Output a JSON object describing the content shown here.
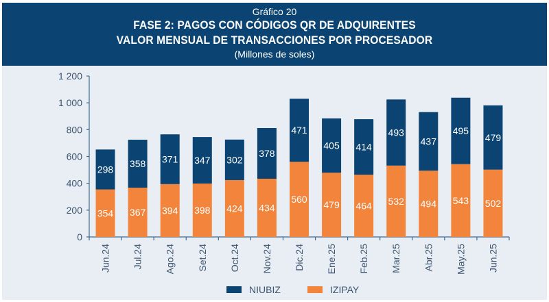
{
  "header": {
    "supertitle": "Gráfico 20",
    "title_line1": "FASE 2: PAGOS CON CÓDIGOS QR DE ADQUIRENTES",
    "title_line2": "VALOR MENSUAL DE TRANSACCIONES POR PROCESADOR",
    "subtitle": "(Millones de soles)"
  },
  "colors": {
    "header_bg": "#0b4472",
    "panel_bg": "#e9eef5",
    "niubiz": "#0b4472",
    "izipay": "#f3843c",
    "axis": "#3d6a94",
    "text": "#3d5570"
  },
  "chart_data": {
    "type": "bar",
    "stacked": true,
    "title": "FASE 2: PAGOS CON CÓDIGOS QR DE ADQUIRENTES - VALOR MENSUAL DE TRANSACCIONES POR PROCESADOR",
    "subtitle": "(Millones de soles)",
    "xlabel": "",
    "ylabel": "",
    "categories": [
      "Jun.24",
      "Jul.24",
      "Ago.24",
      "Set.24",
      "Oct.24",
      "Nov.24",
      "Dic.24",
      "Ene.25",
      "Feb.25",
      "Mar.25",
      "Abr.25",
      "May.25",
      "Jun.25"
    ],
    "series": [
      {
        "name": "IZIPAY",
        "color": "#f3843c",
        "values": [
          354,
          367,
          394,
          398,
          424,
          434,
          560,
          479,
          464,
          532,
          494,
          543,
          502
        ]
      },
      {
        "name": "NIUBIZ",
        "color": "#0b4472",
        "values": [
          298,
          358,
          371,
          347,
          302,
          378,
          471,
          405,
          414,
          493,
          437,
          495,
          479
        ]
      }
    ],
    "ylim": [
      0,
      1200
    ],
    "yticks": [
      0,
      200,
      400,
      600,
      800,
      1000,
      1200
    ],
    "ytick_labels": [
      "0",
      "200",
      "400",
      "600",
      "800",
      "1 000",
      "1 200"
    ],
    "grid": false,
    "legend": {
      "position": "bottom-center",
      "entries": [
        "NIUBIZ",
        "IZIPAY"
      ]
    },
    "data_labels": true
  }
}
